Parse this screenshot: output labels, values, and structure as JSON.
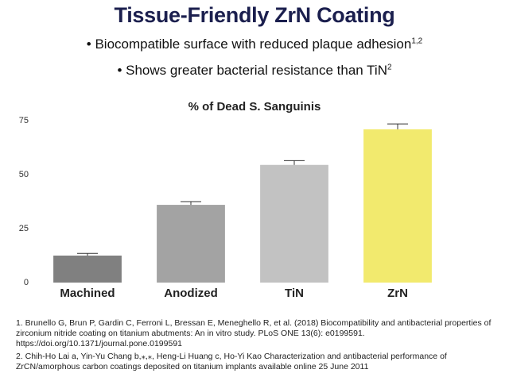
{
  "header": {
    "title": "Tissue-Friendly ZrN Coating"
  },
  "bullets": [
    {
      "text": "Biocompatible surface with reduced plaque adhesion",
      "sup": "1,2"
    },
    {
      "text": "Shows greater bacterial resistance than TiN",
      "sup": "2"
    }
  ],
  "chart_data": {
    "type": "bar",
    "title": "% of Dead S. Sanguinis",
    "categories": [
      "Machined",
      "Anodized",
      "TiN",
      "ZrN"
    ],
    "values": [
      12.5,
      36,
      54.5,
      71
    ],
    "errors": [
      1,
      1.5,
      2,
      2.5
    ],
    "colors": [
      "#808080",
      "#a3a3a3",
      "#c2c2c2",
      "#f2ea6e"
    ],
    "ylim": [
      0,
      75
    ],
    "yticks": [
      0,
      25,
      50,
      75
    ],
    "grid": false
  },
  "references": [
    "1. Brunello G, Brun P, Gardin C, Ferroni L, Bressan E, Meneghello R, et al. (2018) Biocompatibility and antibacterial properties of zirconium nitride coating on titanium abutments: An in vitro study. PLoS ONE 13(6): e0199591. https://doi.org/10.1371/journal.pone.0199591",
    "2. Chih-Ho Lai a, Yin-Yu Chang b,⁎,⁎, Heng-Li Huang c, Ho-Yi Kao Characterization and antibacterial performance of ZrCN/amorphous carbon coatings deposited on titanium implants available online 25 June 2011"
  ]
}
